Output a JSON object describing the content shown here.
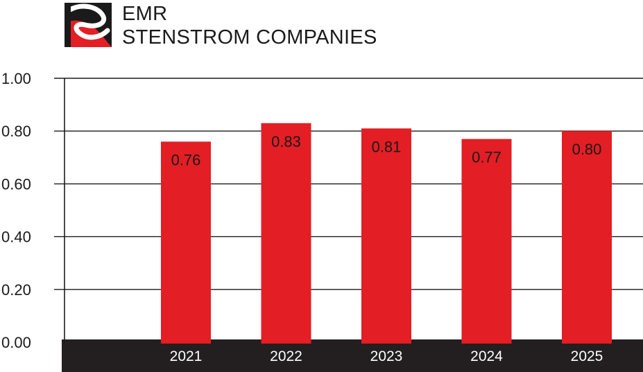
{
  "brand": {
    "line1": "EMR",
    "line2": "STENSTROM COMPANIES",
    "logo_icon": "emr-s-logo-icon",
    "colors": {
      "red": "#e31e24",
      "black": "#1a1a1a"
    }
  },
  "chart_data": {
    "type": "bar",
    "title": "",
    "xlabel": "",
    "ylabel": "",
    "categories": [
      "2021",
      "2022",
      "2023",
      "2024",
      "2025"
    ],
    "values": [
      0.76,
      0.83,
      0.81,
      0.77,
      0.8
    ],
    "data_labels": [
      "0.76",
      "0.83",
      "0.81",
      "0.77",
      "0.80"
    ],
    "yticks": [
      0,
      0.2,
      0.4,
      0.6,
      0.8,
      1.0
    ],
    "ytick_labels": [
      "0.00",
      "0.20",
      "0.40",
      "0.60",
      "0.80",
      "1.00"
    ],
    "ylim": [
      0,
      1.0
    ],
    "grid": true,
    "legend": "none",
    "colors": {
      "bar": "#e31e24",
      "axis_band": "#231f20",
      "grid": "#1a1a1a"
    }
  }
}
